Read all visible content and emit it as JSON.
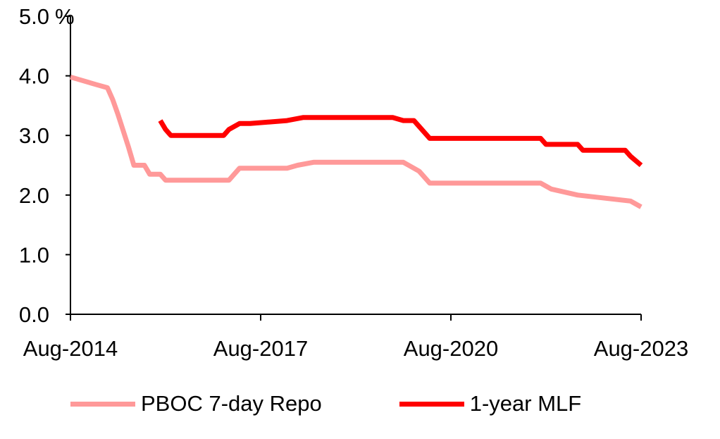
{
  "chart_data": {
    "type": "line",
    "y_unit": "%",
    "ylim": [
      0,
      5
    ],
    "y_ticks": [
      "0.0",
      "1.0",
      "2.0",
      "3.0",
      "4.0",
      "5.0"
    ],
    "x_ticks": [
      "Aug-2014",
      "Aug-2017",
      "Aug-2020",
      "Aug-2023"
    ],
    "xlim": [
      "2014-08",
      "2023-08"
    ],
    "grid": false,
    "legend_position": "bottom",
    "series": [
      {
        "name": "PBOC 7-day Repo",
        "color": "#ff9999",
        "points": [
          [
            "2014-08",
            3.98
          ],
          [
            "2015-01",
            3.85
          ],
          [
            "2015-03",
            3.8
          ],
          [
            "2015-04",
            3.6
          ],
          [
            "2015-05",
            3.35
          ],
          [
            "2015-07",
            2.8
          ],
          [
            "2015-08",
            2.5
          ],
          [
            "2015-10",
            2.5
          ],
          [
            "2015-11",
            2.35
          ],
          [
            "2016-01",
            2.35
          ],
          [
            "2016-02",
            2.25
          ],
          [
            "2017-01",
            2.25
          ],
          [
            "2017-02",
            2.25
          ],
          [
            "2017-03",
            2.35
          ],
          [
            "2017-04",
            2.45
          ],
          [
            "2018-01",
            2.45
          ],
          [
            "2018-03",
            2.5
          ],
          [
            "2018-06",
            2.55
          ],
          [
            "2019-11",
            2.55
          ],
          [
            "2019-12",
            2.5
          ],
          [
            "2020-02",
            2.4
          ],
          [
            "2020-04",
            2.2
          ],
          [
            "2022-01",
            2.2
          ],
          [
            "2022-03",
            2.1
          ],
          [
            "2022-08",
            2.0
          ],
          [
            "2023-06",
            1.9
          ],
          [
            "2023-08",
            1.8
          ]
        ]
      },
      {
        "name": "1-year MLF",
        "color": "#ff0000",
        "points": [
          [
            "2016-01",
            3.25
          ],
          [
            "2016-02",
            3.1
          ],
          [
            "2016-03",
            3.0
          ],
          [
            "2017-01",
            3.0
          ],
          [
            "2017-02",
            3.1
          ],
          [
            "2017-04",
            3.2
          ],
          [
            "2017-06",
            3.2
          ],
          [
            "2018-01",
            3.25
          ],
          [
            "2018-04",
            3.3
          ],
          [
            "2019-09",
            3.3
          ],
          [
            "2019-11",
            3.25
          ],
          [
            "2020-01",
            3.25
          ],
          [
            "2020-02",
            3.15
          ],
          [
            "2020-04",
            2.95
          ],
          [
            "2022-01",
            2.95
          ],
          [
            "2022-02",
            2.85
          ],
          [
            "2022-08",
            2.85
          ],
          [
            "2022-09",
            2.75
          ],
          [
            "2023-05",
            2.75
          ],
          [
            "2023-06",
            2.65
          ],
          [
            "2023-08",
            2.5
          ]
        ]
      }
    ]
  }
}
